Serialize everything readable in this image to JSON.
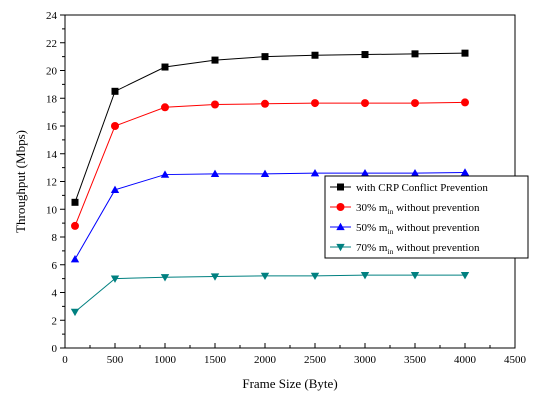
{
  "chart_data": {
    "type": "line",
    "xlabel": "Frame Size (Byte)",
    "ylabel": "Throughput (Mbps)",
    "xlim": [
      0,
      4500
    ],
    "ylim": [
      0,
      24
    ],
    "x_ticks": [
      0,
      500,
      1000,
      1500,
      2000,
      2500,
      3000,
      3500,
      4000,
      4500
    ],
    "y_ticks": [
      0,
      2,
      4,
      6,
      8,
      10,
      12,
      14,
      16,
      18,
      20,
      22,
      24
    ],
    "grid": false,
    "legend_position": "right",
    "x": [
      100,
      500,
      1000,
      1500,
      2000,
      2500,
      3000,
      3500,
      4000
    ],
    "series": [
      {
        "legend_text": [
          "with CRP Conflict Prevention"
        ],
        "color": "#000000",
        "marker": "square",
        "values": [
          10.5,
          18.5,
          20.25,
          20.75,
          21.0,
          21.1,
          21.15,
          21.2,
          21.25
        ]
      },
      {
        "legend_text": [
          "30% m",
          "in",
          " without prevention"
        ],
        "color": "#ff0000",
        "marker": "circle",
        "values": [
          8.8,
          16.0,
          17.35,
          17.55,
          17.6,
          17.65,
          17.65,
          17.65,
          17.7
        ]
      },
      {
        "legend_text": [
          "50% m",
          "in",
          " without prevention"
        ],
        "color": "#0000ff",
        "marker": "triangle-up",
        "values": [
          6.4,
          11.4,
          12.5,
          12.55,
          12.55,
          12.6,
          12.6,
          12.6,
          12.65
        ]
      },
      {
        "legend_text": [
          "70% m",
          "in",
          " without prevention"
        ],
        "color": "#008080",
        "marker": "triangle-down",
        "values": [
          2.6,
          5.0,
          5.1,
          5.15,
          5.2,
          5.2,
          5.25,
          5.25,
          5.25
        ]
      }
    ]
  }
}
